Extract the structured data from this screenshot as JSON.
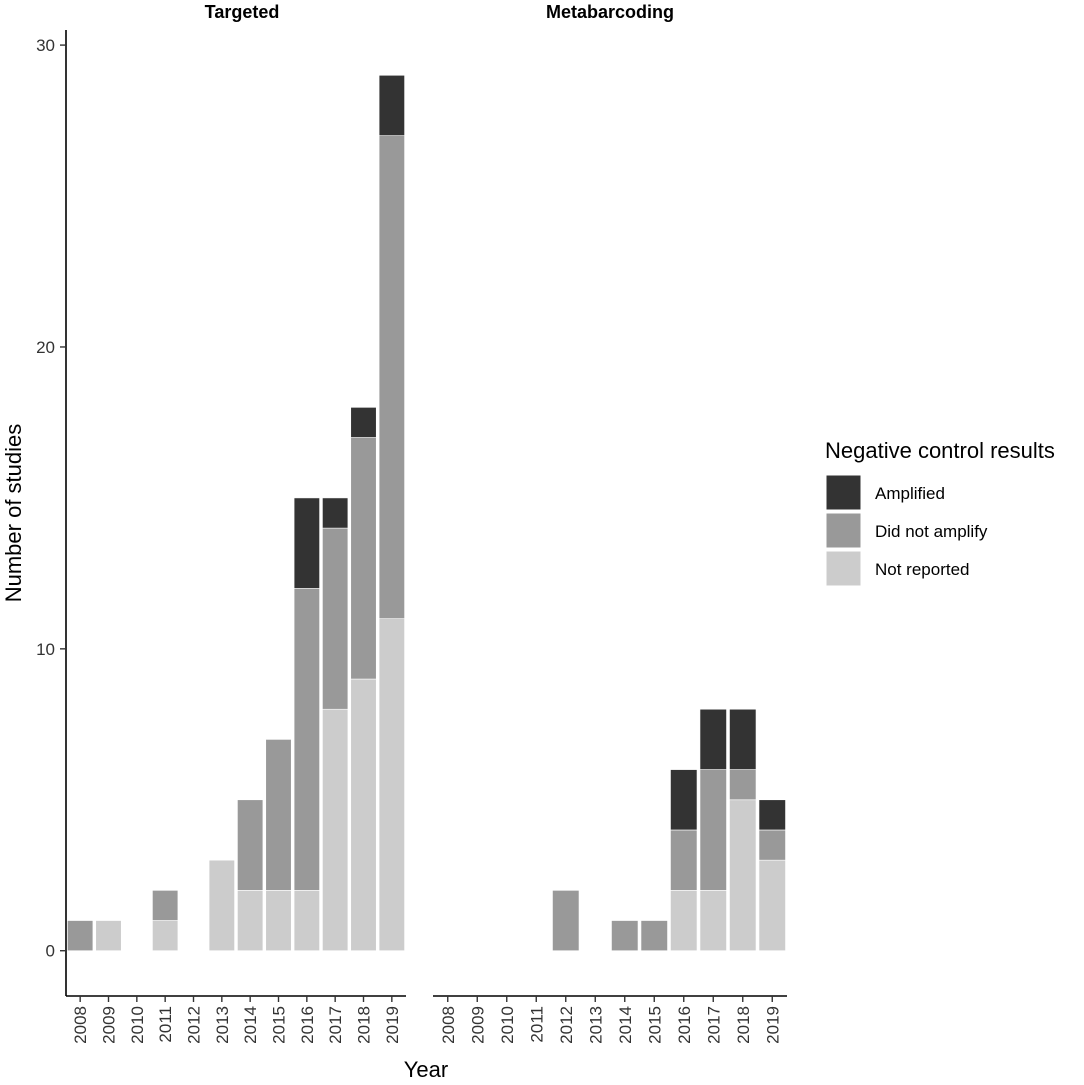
{
  "chart_data": {
    "type": "bar",
    "stacked": true,
    "ylabel": "Number of studies",
    "xlabel": "Year",
    "ylim": [
      -1.5,
      30.5
    ],
    "yticks": [
      0,
      10,
      20,
      30
    ],
    "grid": false,
    "legend": {
      "title": "Negative control results",
      "placement": "right",
      "entries": [
        {
          "name": "Amplified",
          "color": "#333333"
        },
        {
          "name": "Did not amplify",
          "color": "#999999"
        },
        {
          "name": "Not reported",
          "color": "#cccccc"
        }
      ]
    },
    "stack_order": [
      "Not reported",
      "Did not amplify",
      "Amplified"
    ],
    "categories": [
      "2008",
      "2009",
      "2010",
      "2011",
      "2012",
      "2013",
      "2014",
      "2015",
      "2016",
      "2017",
      "2018",
      "2019"
    ],
    "panels": [
      {
        "title": "Targeted",
        "series": [
          {
            "name": "Amplified",
            "values": [
              0,
              0,
              0,
              0,
              0,
              0,
              0,
              0,
              3,
              1,
              1,
              2
            ]
          },
          {
            "name": "Did not amplify",
            "values": [
              1,
              0,
              0,
              1,
              0,
              0,
              3,
              5,
              10,
              6,
              8,
              16
            ]
          },
          {
            "name": "Not reported",
            "values": [
              0,
              1,
              0,
              1,
              0,
              3,
              2,
              2,
              2,
              8,
              9,
              11
            ]
          }
        ]
      },
      {
        "title": "Metabarcoding",
        "series": [
          {
            "name": "Amplified",
            "values": [
              0,
              0,
              0,
              0,
              0,
              0,
              0,
              0,
              2,
              2,
              2,
              1
            ]
          },
          {
            "name": "Did not amplify",
            "values": [
              0,
              0,
              0,
              0,
              2,
              0,
              1,
              1,
              2,
              4,
              1,
              1
            ]
          },
          {
            "name": "Not reported",
            "values": [
              0,
              0,
              0,
              0,
              0,
              0,
              0,
              0,
              2,
              2,
              5,
              3
            ]
          }
        ]
      }
    ]
  }
}
